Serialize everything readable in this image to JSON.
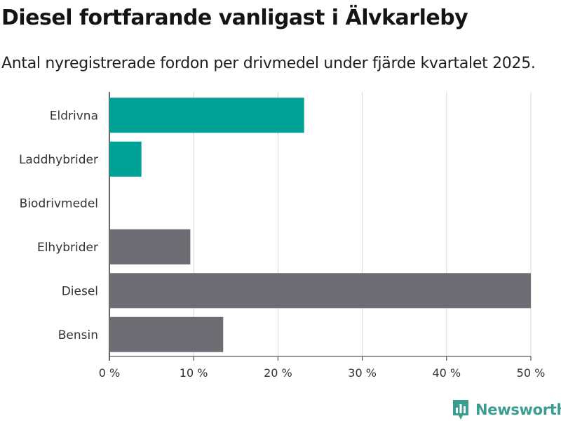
{
  "header": {
    "title": "Diesel fortfarande vanligast i Älvkarleby",
    "subtitle": "Antal nyregistrerade fordon per drivmedel under fjärde kvartalet 2025."
  },
  "colors": {
    "highlight": "#00a196",
    "default": "#6e6d74",
    "grid": "#d9d9d9",
    "axis": "#333333",
    "brand": "#3a9d90"
  },
  "chart_data": {
    "type": "bar",
    "orientation": "horizontal",
    "title": "Diesel fortfarande vanligast i Älvkarleby",
    "subtitle": "Antal nyregistrerade fordon per drivmedel under fjärde kvartalet 2025.",
    "categories": [
      "Eldrivna",
      "Laddhybrider",
      "Biodrivmedel",
      "Elhybrider",
      "Diesel",
      "Bensin"
    ],
    "values": [
      23.1,
      3.8,
      0,
      9.6,
      50.0,
      13.5
    ],
    "highlighted": [
      true,
      true,
      false,
      false,
      false,
      false
    ],
    "unit": "%",
    "xlim": [
      0,
      50
    ],
    "xticks": [
      0,
      10,
      20,
      30,
      40,
      50
    ],
    "xtick_labels": [
      "0 %",
      "10 %",
      "20 %",
      "30 %",
      "40 %",
      "50 %"
    ],
    "grid": true,
    "xlabel": "",
    "ylabel": ""
  },
  "brand": {
    "name": "Newsworthy",
    "icon": "newsworthy-logo-icon"
  }
}
